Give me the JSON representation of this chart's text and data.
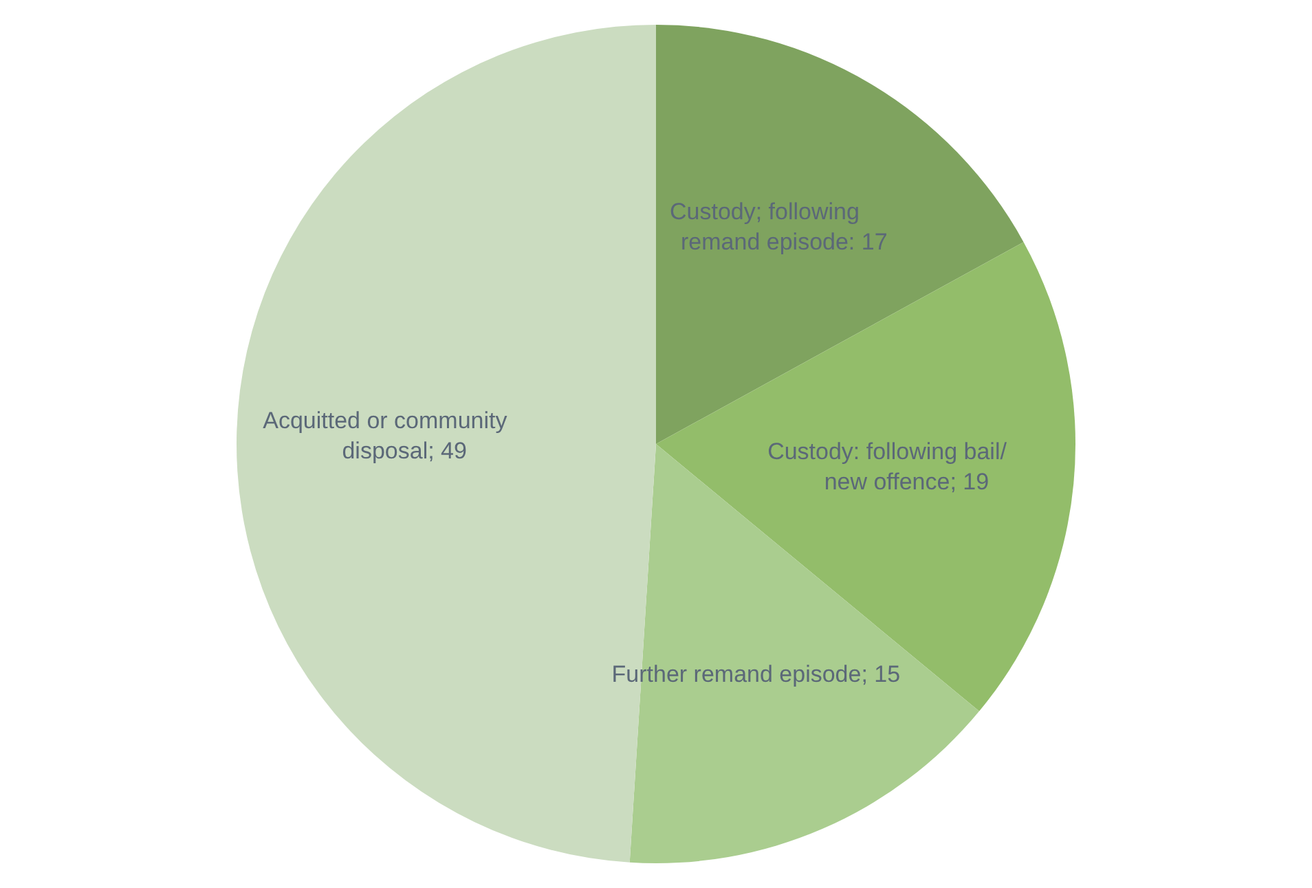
{
  "chart_data": {
    "type": "pie",
    "categories": [
      "Custody; following remand episode",
      "Custody: following bail/ new offence",
      "Further remand episode",
      "Acquitted or community disposal"
    ],
    "values": [
      17,
      19,
      15,
      49
    ],
    "colors": [
      "#7fa35f",
      "#93bd6a",
      "#aacd8f",
      "#cbdcc0"
    ],
    "value_labels": [
      ": 17",
      "; 19",
      "; 15",
      "; 49"
    ]
  }
}
